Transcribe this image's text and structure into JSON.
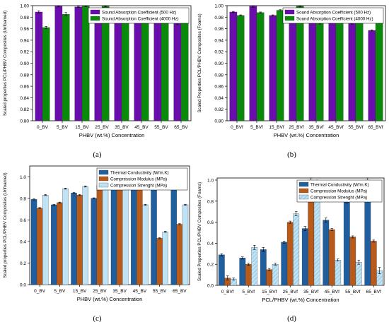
{
  "chart_data": [
    {
      "type": "bar",
      "caption": "(a)",
      "xlabel": "PHBV (wt.%) Concentration",
      "ylabel": "Scaled properties PCL/PHBV Composites (Unfoamed)",
      "ylim": [
        0.8,
        1.0
      ],
      "yticks": [
        "0.80",
        "0.82",
        "0.84",
        "0.86",
        "0.88",
        "0.90",
        "0.92",
        "0.94",
        "0.96",
        "0.98",
        "1.00"
      ],
      "categories": [
        "0_BV",
        "5_BV",
        "15_BV",
        "25_BV",
        "35_BV",
        "45_BV",
        "55_BV",
        "65_BV"
      ],
      "legend_position": "top-right",
      "series": [
        {
          "name": "Sound Absorption Coefficient (500 Hz)",
          "color": "#6a0dad",
          "values": [
            0.989,
            0.999,
            0.998,
            0.986,
            0.978,
            0.987,
            0.976,
            0.969
          ],
          "errors": [
            0.002,
            0.001,
            0.001,
            0.002,
            0.002,
            0.002,
            0.001,
            0.002
          ]
        },
        {
          "name": "Sound Absorption Coefficient (4000 Hz)",
          "color": "#0a8a0a",
          "values": [
            0.962,
            0.985,
            0.999,
            0.999,
            0.988,
            0.985,
            0.986,
            0.987
          ],
          "errors": [
            0.002,
            0.003,
            0.001,
            0.001,
            0.001,
            0.002,
            0.001,
            0.003
          ]
        }
      ]
    },
    {
      "type": "bar",
      "caption": "(b)",
      "xlabel": "PHBV (wt.%) Concentration",
      "ylabel": "Scaled Properties PCL/PHBV Composites (Foams)",
      "ylim": [
        0.8,
        1.0
      ],
      "yticks": [
        "0.80",
        "0.82",
        "0.84",
        "0.86",
        "0.88",
        "0.90",
        "0.92",
        "0.94",
        "0.96",
        "0.98",
        "1.00"
      ],
      "categories": [
        "0_BVf",
        "5_BVf",
        "15_BVf",
        "25_BVf",
        "35_BVf",
        "45_BVf",
        "55_BVf",
        "65_BVf"
      ],
      "legend_position": "top-right",
      "series": [
        {
          "name": "Sound Absorption Coefficient (500 Hz)",
          "color": "#6a0dad",
          "values": [
            0.989,
            0.999,
            0.983,
            0.98,
            0.972,
            0.975,
            0.969,
            0.957
          ],
          "errors": [
            0.001,
            0.002,
            0.001,
            0.001,
            0.001,
            0.001,
            0.001,
            0.001
          ]
        },
        {
          "name": "Sound Absorption Coefficient (4000 Hz)",
          "color": "#0a8a0a",
          "values": [
            0.983,
            0.988,
            0.992,
            0.999,
            0.969,
            0.988,
            0.981,
            0.971
          ],
          "errors": [
            0.001,
            0.001,
            0.001,
            0.001,
            0.001,
            0.001,
            0.001,
            0.001
          ]
        }
      ]
    },
    {
      "type": "bar",
      "caption": "(c)",
      "xlabel": "PHBV (wt.%) Concentration",
      "ylabel": "Scaled properties PCL/PHBV Composites (Unfoamed)",
      "ylim": [
        0.0,
        1.1
      ],
      "yticks": [
        "0.0",
        "0.2",
        "0.4",
        "0.6",
        "0.8",
        "1.0"
      ],
      "ytick_values": [
        0.0,
        0.2,
        0.4,
        0.6,
        0.8,
        1.0
      ],
      "categories": [
        "0_BV",
        "5_BV",
        "15_BV",
        "25_BV",
        "35_BV",
        "45_BV",
        "55_BV",
        "65_BV"
      ],
      "legend_position": "top-right",
      "series": [
        {
          "name": "Thermal Conductivity (W/m.K)",
          "color": "#1f5fa0",
          "values": [
            0.79,
            0.74,
            0.85,
            0.8,
            0.98,
            0.91,
            0.95,
            1.0
          ],
          "errors": [
            0.005,
            0.005,
            0.005,
            0.005,
            0.005,
            0.005,
            0.005,
            0.005
          ]
        },
        {
          "name": "Compression Modulus (MPa)",
          "color": "#b85a1a",
          "values": [
            0.71,
            0.76,
            0.83,
            0.92,
            1.0,
            0.9,
            0.43,
            0.56
          ],
          "errors": [
            0.005,
            0.005,
            0.005,
            0.005,
            0.005,
            0.005,
            0.005,
            0.005
          ]
        },
        {
          "name": "Compression Strenght (MPa)",
          "color": "#bfe3f5",
          "values": [
            0.83,
            0.89,
            0.91,
            0.95,
            1.0,
            0.74,
            0.49,
            0.74
          ],
          "errors": [
            0.005,
            0.005,
            0.005,
            0.005,
            0.005,
            0.005,
            0.005,
            0.005
          ]
        }
      ]
    },
    {
      "type": "bar",
      "caption": "(d)",
      "xlabel": "PCL/PHBV (wt.%) Concentration",
      "ylabel": "Scaled Properties PCL/PHBV Composites (Foams)",
      "ylim": [
        0.0,
        1.02
      ],
      "yticks": [
        "0.0",
        "0.2",
        "0.4",
        "0.6",
        "0.8",
        "1.0"
      ],
      "ytick_values": [
        0.0,
        0.2,
        0.4,
        0.6,
        0.8,
        1.0
      ],
      "categories": [
        "0_BVf",
        "5_BVf",
        "15_BVf",
        "25_BVf",
        "35_BVf",
        "45_BVf",
        "55_BVf",
        "65_BVf"
      ],
      "legend_position": "top-right",
      "series": [
        {
          "name": "Thermal Conductivity (W/m.K)",
          "color": "#1f5fa0",
          "values": [
            0.29,
            0.26,
            0.34,
            0.41,
            0.54,
            0.62,
            0.8,
            1.0
          ],
          "errors": [
            0.01,
            0.01,
            0.02,
            0.01,
            0.02,
            0.02,
            0.02,
            0.02
          ]
        },
        {
          "name": "Compression Modulus (MPa)",
          "color": "#b85a1a",
          "values": [
            0.07,
            0.2,
            0.15,
            0.6,
            1.0,
            0.53,
            0.46,
            0.42
          ],
          "errors": [
            0.02,
            0.01,
            0.01,
            0.01,
            0.02,
            0.01,
            0.01,
            0.01
          ]
        },
        {
          "name": "Compression Strenght (MPa)",
          "color": "#bfe3f5",
          "hatched": true,
          "values": [
            0.06,
            0.36,
            0.2,
            0.68,
            0.99,
            0.24,
            0.22,
            0.14
          ],
          "errors": [
            0.01,
            0.02,
            0.01,
            0.02,
            0.01,
            0.01,
            0.02,
            0.03
          ]
        }
      ]
    }
  ]
}
